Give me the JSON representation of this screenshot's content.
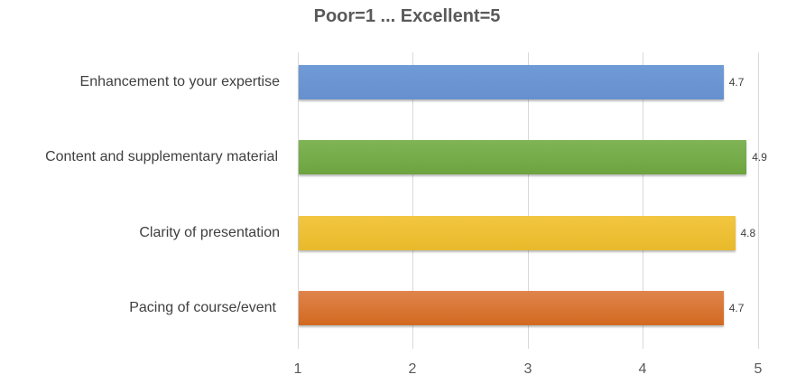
{
  "chart_data": {
    "type": "bar",
    "orientation": "horizontal",
    "title": "Poor=1 ... Excellent=5",
    "categories": [
      "Enhancement to your expertise",
      "Content and supplementary material",
      "Clarity of presentation",
      "Pacing of course/event"
    ],
    "values": [
      4.7,
      4.9,
      4.8,
      4.7
    ],
    "value_labels": [
      "4.7",
      "4.9",
      "4.8",
      "4.7"
    ],
    "colors": [
      "#6f9bd6",
      "#76ad4a",
      "#eebf36",
      "#d97637"
    ],
    "xlabel": "",
    "ylabel": "",
    "xlim": [
      1,
      5
    ],
    "xticks": [
      "1",
      "2",
      "3",
      "4",
      "5"
    ],
    "grid": "vertical",
    "legend": "none"
  }
}
